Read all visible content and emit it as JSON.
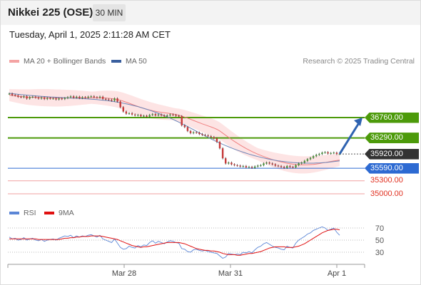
{
  "header": {
    "title": "Nikkei 225 (OSE)",
    "timeframe": "30 MIN",
    "datetime": "Tuesday, April 1, 2025 2:11:28 AM CET"
  },
  "legend": {
    "ma20": "MA 20 + Bollinger Bands",
    "ma50": "MA 50",
    "ma20_color": "#f4a3a3",
    "ma50_color": "#3a5f9e",
    "credit": "Research © 2025 Trading Central"
  },
  "levels": [
    {
      "value": "36760.00",
      "price": 36760,
      "kind": "resistance",
      "color": "#4c9a0a",
      "text_color": "#ffffff"
    },
    {
      "value": "36290.00",
      "price": 36290,
      "kind": "resistance",
      "color": "#4c9a0a",
      "text_color": "#ffffff"
    },
    {
      "value": "35920.00",
      "price": 35920,
      "kind": "current",
      "color": "#333333",
      "text_color": "#ffffff"
    },
    {
      "value": "35590.00",
      "price": 35590,
      "kind": "support",
      "color": "#2d6ad2",
      "text_color": "#ffffff"
    },
    {
      "value": "35300.00",
      "price": 35300,
      "kind": "support-minor",
      "color": "#f0a0a0",
      "text_color": "#e03020"
    },
    {
      "value": "35000.00",
      "price": 35000,
      "kind": "support-minor",
      "color": "#f0a0a0",
      "text_color": "#e03020"
    }
  ],
  "rsi_legend": {
    "rsi": "RSI",
    "ma9": "9MA",
    "rsi_color": "#5b86d6",
    "ma9_color": "#e01010"
  },
  "rsi_levels": [
    "70",
    "50",
    "30"
  ],
  "x_axis": {
    "labels": [
      "Mar 28",
      "Mar 31",
      "Apr 1"
    ]
  },
  "chart_data": {
    "type": "candlestick",
    "price_range": [
      35000,
      37800
    ],
    "close": [
      37310,
      37280,
      37270,
      37240,
      37230,
      37250,
      37200,
      37230,
      37240,
      37220,
      37200,
      37220,
      37190,
      37210,
      37200,
      37200,
      37180,
      37200,
      37190,
      37210,
      37230,
      37250,
      37220,
      37240,
      37210,
      37230,
      37220,
      37240,
      37250,
      37230,
      37220,
      37240,
      37190,
      37180,
      37170,
      37150,
      37200,
      37130,
      37000,
      36900,
      36850,
      36860,
      36830,
      36810,
      36820,
      36790,
      36800,
      36780,
      36820,
      36840,
      36810,
      36830,
      36810,
      36790,
      36810,
      36830,
      36820,
      36800,
      36790,
      36580,
      36540,
      36450,
      36400,
      36420,
      36410,
      36380,
      36360,
      36350,
      36330,
      36310,
      36280,
      36200,
      36050,
      35820,
      35700,
      35720,
      35680,
      35660,
      35650,
      35630,
      35640,
      35610,
      35620,
      35600,
      35630,
      35650,
      35660,
      35700,
      35720,
      35700,
      35680,
      35650,
      35640,
      35620,
      35600,
      35640,
      35620,
      35610,
      35660,
      35700,
      35720,
      35760,
      35800,
      35830,
      35870,
      35900,
      35920,
      35950,
      35960,
      35930,
      35940,
      35950,
      35920,
      35920
    ],
    "ma20": [
      37280,
      37270,
      37262,
      37254,
      37246,
      37240,
      37234,
      37230,
      37228,
      37226,
      37224,
      37222,
      37220,
      37218,
      37216,
      37214,
      37212,
      37212,
      37212,
      37212,
      37212,
      37213,
      37214,
      37215,
      37216,
      37217,
      37218,
      37218,
      37218,
      37218,
      37218,
      37217,
      37214,
      37210,
      37205,
      37198,
      37190,
      37178,
      37160,
      37138,
      37114,
      37090,
      37065,
      37040,
      37016,
      36993,
      36972,
      36952,
      36934,
      36918,
      36904,
      36892,
      36882,
      36872,
      36862,
      36852,
      36842,
      36830,
      36816,
      36796,
      36772,
      36746,
      36720,
      36694,
      36668,
      36642,
      36616,
      36592,
      36568,
      36544,
      36518,
      36488,
      36450,
      36402,
      36352,
      36304,
      36256,
      36210,
      36166,
      36124,
      36084,
      36046,
      36010,
      35976,
      35944,
      35914,
      35886,
      35860,
      35836,
      35812,
      35790,
      35770,
      35752,
      35736,
      35720,
      35706,
      35694,
      35684,
      35676,
      35670,
      35668,
      35668,
      35670,
      35674,
      35680,
      35688,
      35698,
      35710,
      35722,
      35734,
      35746,
      35758,
      35770,
      35780
    ],
    "ma50": [
      37320,
      37312,
      37304,
      37296,
      37290,
      37284,
      37278,
      37272,
      37266,
      37260,
      37255,
      37250,
      37245,
      37240,
      37236,
      37232,
      37228,
      37224,
      37220,
      37217,
      37214,
      37211,
      37208,
      37205,
      37202,
      37198,
      37194,
      37190,
      37185,
      37180,
      37174,
      37168,
      37161,
      37154,
      37146,
      37137,
      37127,
      37116,
      37104,
      37091,
      37077,
      37062,
      37046,
      37029,
      37011,
      36992,
      36972,
      36951,
      36929,
      36906,
      36882,
      36857,
      36831,
      36804,
      36776,
      36747,
      36717,
      36686,
      36654,
      36621,
      36587,
      36552,
      36516,
      36480,
      36444,
      36408,
      36372,
      36337,
      36302,
      36268,
      36235,
      36203,
      36172,
      36142,
      36113,
      36085,
      36058,
      36032,
      36007,
      35983,
      35960,
      35938,
      35917,
      35897,
      35878,
      35860,
      35843,
      35827,
      35812,
      35798,
      35785,
      35773,
      35762,
      35752,
      35743,
      35735,
      35728,
      35722,
      35717,
      35713,
      35710,
      35708,
      35707,
      35707,
      35708,
      35710,
      35713,
      35717,
      35722,
      35728,
      35735,
      35743,
      35752,
      35760
    ],
    "projection": {
      "from": 35920,
      "to": 36760
    },
    "rsi": [
      55,
      52,
      53,
      50,
      51,
      54,
      50,
      52,
      53,
      50,
      49,
      51,
      48,
      50,
      51,
      52,
      50,
      53,
      55,
      57,
      56,
      58,
      54,
      57,
      55,
      57,
      56,
      58,
      59,
      57,
      55,
      58,
      52,
      50,
      48,
      46,
      52,
      45,
      38,
      35,
      36,
      40,
      38,
      37,
      41,
      39,
      42,
      41,
      46,
      49,
      45,
      48,
      46,
      44,
      47,
      49,
      48,
      46,
      45,
      36,
      35,
      31,
      30,
      34,
      35,
      33,
      32,
      33,
      31,
      30,
      29,
      28,
      24,
      20,
      22,
      28,
      27,
      26,
      27,
      26,
      30,
      29,
      31,
      29,
      34,
      38,
      40,
      44,
      46,
      43,
      40,
      38,
      37,
      35,
      34,
      40,
      38,
      37,
      45,
      50,
      53,
      56,
      60,
      62,
      66,
      68,
      70,
      72,
      70,
      66,
      68,
      70,
      63,
      58
    ],
    "rsi_ma9": [
      52,
      52,
      52,
      52,
      52,
      52,
      52,
      52,
      52,
      52,
      51,
      51,
      51,
      51,
      51,
      51,
      51,
      51,
      52,
      53,
      53,
      54,
      54,
      55,
      55,
      56,
      56,
      56,
      57,
      57,
      57,
      57,
      56,
      55,
      54,
      53,
      52,
      51,
      49,
      47,
      45,
      43,
      41,
      40,
      39,
      38,
      39,
      39,
      40,
      41,
      42,
      43,
      44,
      45,
      46,
      46,
      46,
      46,
      46,
      45,
      44,
      42,
      40,
      38,
      36,
      35,
      34,
      33,
      33,
      32,
      32,
      31,
      30,
      28,
      27,
      26,
      26,
      26,
      25,
      25,
      26,
      27,
      28,
      28,
      29,
      30,
      31,
      33,
      35,
      37,
      38,
      39,
      39,
      39,
      39,
      38,
      38,
      38,
      39,
      40,
      42,
      44,
      47,
      50,
      53,
      56,
      59,
      62,
      64,
      66,
      67,
      68,
      68,
      67
    ]
  }
}
